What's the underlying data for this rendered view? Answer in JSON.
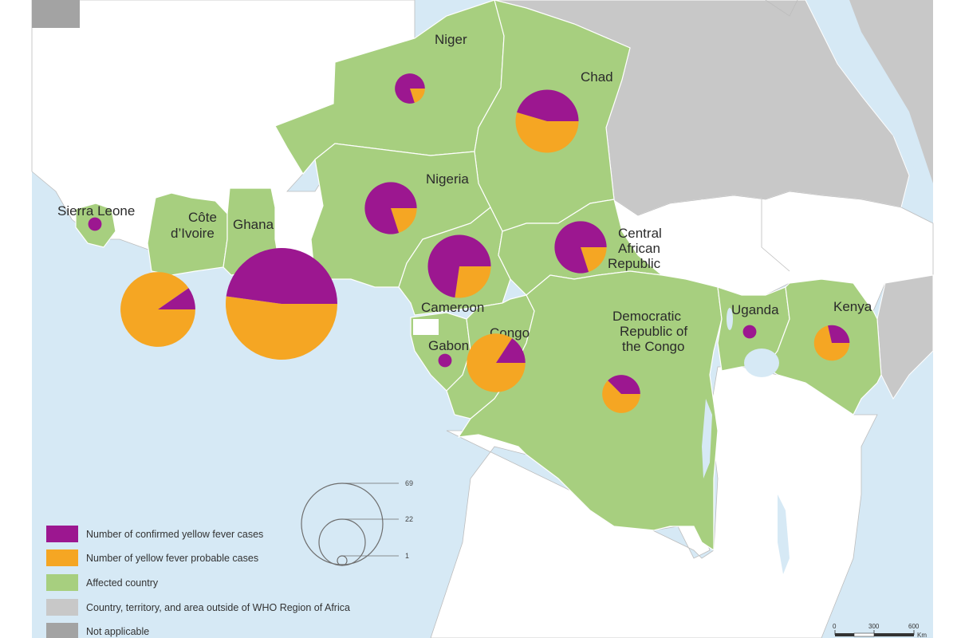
{
  "colors": {
    "confirmed": "#9c1790",
    "probable": "#f5a623",
    "affected": "#a7cf7f",
    "outside_who": "#c8c8c8",
    "not_applicable": "#a3a3a3",
    "water": "#d6e9f5"
  },
  "labels": {
    "niger": "Niger",
    "chad": "Chad",
    "nigeria": "Nigeria",
    "sierra_leone": "Sierra Leone",
    "cote_divoire_1": "Côte",
    "cote_divoire_2": "d’Ivoire",
    "ghana": "Ghana",
    "car_1": "Central",
    "car_2": "African",
    "car_3": "Republic",
    "cameroon": "Cameroon",
    "congo": "Congo",
    "gabon": "Gabon",
    "drc_1": "Democratic",
    "drc_2": "Republic of",
    "drc_3": "the Congo",
    "uganda": "Uganda",
    "kenya": "Kenya"
  },
  "legend": {
    "confirmed": "Number of confirmed yellow fever cases",
    "probable": "Number of yellow fever probable cases",
    "affected": "Affected country",
    "outside": "Country, territory, and area outside of WHO Region of Africa",
    "not_applicable": "Not applicable"
  },
  "size_legend": {
    "large": "69",
    "medium": "22",
    "small": "1"
  },
  "scale_bar": {
    "tick_0": "0",
    "tick_1": "300",
    "tick_2": "600",
    "unit": "Km"
  },
  "pie_data": [
    {
      "country": "Niger",
      "confirmed": 4,
      "probable": 1
    },
    {
      "country": "Chad",
      "confirmed": 10,
      "probable": 12
    },
    {
      "country": "Nigeria",
      "confirmed": 12,
      "probable": 3
    },
    {
      "country": "Sierra Leone",
      "confirmed": 1,
      "probable": 0
    },
    {
      "country": "Côte d’Ivoire",
      "confirmed": 3,
      "probable": 28
    },
    {
      "country": "Ghana",
      "confirmed": 33,
      "probable": 36
    },
    {
      "country": "Cameroon",
      "confirmed": 16,
      "probable": 6
    },
    {
      "country": "Central African Republic",
      "confirmed": 12,
      "probable": 3
    },
    {
      "country": "Congo",
      "confirmed": 3,
      "probable": 16
    },
    {
      "country": "Gabon",
      "confirmed": 1,
      "probable": 0
    },
    {
      "country": "Democratic Republic of the Congo",
      "confirmed": 3,
      "probable": 5
    },
    {
      "country": "Uganda",
      "confirmed": 1,
      "probable": 0
    },
    {
      "country": "Kenya",
      "confirmed": 2,
      "probable": 5
    }
  ]
}
